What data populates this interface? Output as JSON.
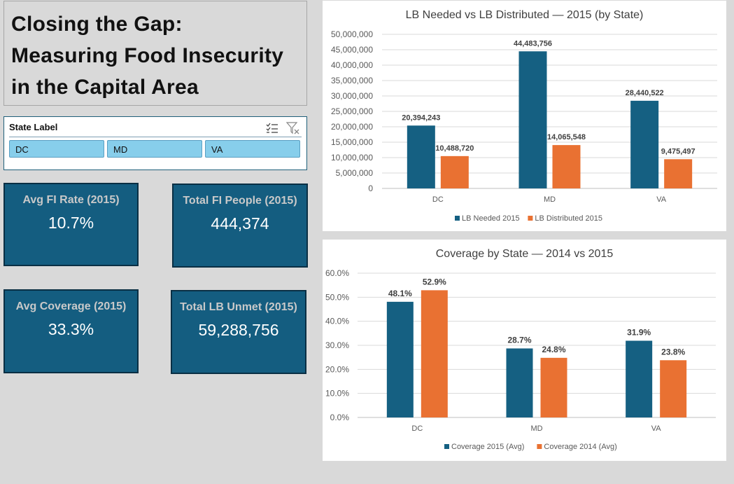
{
  "title": {
    "line1": "Closing the Gap:",
    "line2": "Measuring Food Insecurity",
    "line3": "in the Capital Area"
  },
  "slicer": {
    "label": "State Label",
    "items": [
      "DC",
      "MD",
      "VA"
    ],
    "icons": [
      "multi-select-icon",
      "clear-filter-icon"
    ]
  },
  "kpis": {
    "avg_fi_rate": {
      "label": "Avg FI Rate (2015)",
      "value": "10.7%"
    },
    "total_fi_people": {
      "label": "Total FI People (2015)",
      "value": "444,374"
    },
    "avg_coverage": {
      "label": "Avg Coverage (2015)",
      "value": "33.3%"
    },
    "total_lb_unmet": {
      "label": "Total LB Unmet (2015)",
      "value": "59,288,756"
    }
  },
  "colors": {
    "series_blue": "#156082",
    "series_orange": "#e97132",
    "kpi_bg": "#145d80",
    "slicer_item": "#87ceeb"
  },
  "chart_data": [
    {
      "type": "bar",
      "title": "LB Needed vs LB Distributed — 2015 (by State)",
      "categories": [
        "DC",
        "MD",
        "VA"
      ],
      "series": [
        {
          "name": "LB Needed 2015",
          "values": [
            20394243,
            44483756,
            28440522
          ],
          "labels": [
            "20,394,243",
            "44,483,756",
            "28,440,522"
          ]
        },
        {
          "name": "LB Distributed 2015",
          "values": [
            10488720,
            14065548,
            9475497
          ],
          "labels": [
            "10,488,720",
            "14,065,548",
            "9,475,497"
          ]
        }
      ],
      "ylim": [
        0,
        50000000
      ],
      "yticks": [
        "0",
        "5,000,000",
        "10,000,000",
        "15,000,000",
        "20,000,000",
        "25,000,000",
        "30,000,000",
        "35,000,000",
        "40,000,000",
        "45,000,000",
        "50,000,000"
      ],
      "grid": true,
      "legend": "bottom"
    },
    {
      "type": "bar",
      "title": "Coverage by State — 2014 vs 2015",
      "categories": [
        "DC",
        "MD",
        "VA"
      ],
      "series": [
        {
          "name": "Coverage 2015 (Avg)",
          "values": [
            48.1,
            28.7,
            31.9
          ],
          "labels": [
            "48.1%",
            "28.7%",
            "31.9%"
          ]
        },
        {
          "name": "Coverage 2014 (Avg)",
          "values": [
            52.9,
            24.8,
            23.8
          ],
          "labels": [
            "52.9%",
            "24.8%",
            "23.8%"
          ]
        }
      ],
      "ylim": [
        0,
        60
      ],
      "yticks": [
        "0.0%",
        "10.0%",
        "20.0%",
        "30.0%",
        "40.0%",
        "50.0%",
        "60.0%"
      ],
      "grid": true,
      "legend": "bottom"
    }
  ]
}
